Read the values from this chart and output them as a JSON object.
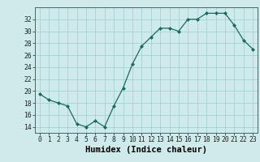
{
  "x": [
    0,
    1,
    2,
    3,
    4,
    5,
    6,
    7,
    8,
    9,
    10,
    11,
    12,
    13,
    14,
    15,
    16,
    17,
    18,
    19,
    20,
    21,
    22,
    23
  ],
  "y": [
    19.5,
    18.5,
    18.0,
    17.5,
    14.5,
    14.0,
    15.0,
    14.0,
    17.5,
    20.5,
    24.5,
    27.5,
    29.0,
    30.5,
    30.5,
    30.0,
    32.0,
    32.0,
    33.0,
    33.0,
    33.0,
    31.0,
    28.5,
    27.0
  ],
  "xlabel": "Humidex (Indice chaleur)",
  "ylim": [
    13,
    34
  ],
  "xlim": [
    -0.5,
    23.5
  ],
  "yticks": [
    14,
    16,
    18,
    20,
    22,
    24,
    26,
    28,
    30,
    32
  ],
  "xticks": [
    0,
    1,
    2,
    3,
    4,
    5,
    6,
    7,
    8,
    9,
    10,
    11,
    12,
    13,
    14,
    15,
    16,
    17,
    18,
    19,
    20,
    21,
    22,
    23
  ],
  "line_color": "#1a6b5a",
  "marker_color": "#1a6b5a",
  "bg_color": "#ceeaea",
  "grid_color": "#9ecece",
  "tick_fontsize": 5.8,
  "xlabel_fontsize": 7.5
}
